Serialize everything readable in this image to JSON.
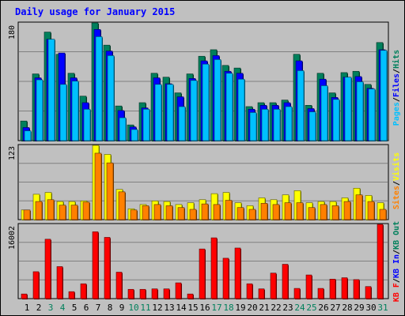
{
  "title": "Daily usage for January 2015",
  "colors": {
    "frame_bg": "#c0c0c0",
    "grid": "#808080",
    "title": "#0000ff",
    "hits": "#00805c",
    "files": "#0000ff",
    "pages": "#00c0ff",
    "visits": "#ffff00",
    "sites": "#ff8000",
    "kbytes": "#ff0000",
    "weekend_label": "#00805c",
    "weekday_label": "#000000"
  },
  "chart_data": [
    {
      "type": "bar",
      "panel": "top",
      "y_max_label": "180",
      "ymax": 180,
      "legend": [
        {
          "text": "Pages",
          "color": "#00c0ff"
        },
        {
          "text": "/",
          "color": "#000000"
        },
        {
          "text": "Files",
          "color": "#0000ff"
        },
        {
          "text": "/",
          "color": "#000000"
        },
        {
          "text": "Hits",
          "color": "#00805c"
        }
      ],
      "categories": [
        "1",
        "2",
        "3",
        "4",
        "5",
        "6",
        "7",
        "8",
        "9",
        "10",
        "11",
        "12",
        "13",
        "14",
        "15",
        "16",
        "17",
        "18",
        "19",
        "20",
        "21",
        "22",
        "23",
        "24",
        "25",
        "26",
        "27",
        "28",
        "29",
        "30",
        "31"
      ],
      "series": [
        {
          "name": "Hits",
          "color": "#00805c",
          "values": [
            30,
            102,
            166,
            132,
            103,
            68,
            180,
            146,
            53,
            24,
            58,
            103,
            97,
            73,
            102,
            129,
            139,
            115,
            111,
            52,
            58,
            58,
            62,
            132,
            54,
            103,
            73,
            104,
            106,
            86,
            150
          ]
        },
        {
          "name": "Files",
          "color": "#0000ff",
          "values": [
            20,
            96,
            155,
            134,
            96,
            58,
            170,
            137,
            46,
            21,
            50,
            96,
            87,
            67,
            95,
            122,
            130,
            106,
            103,
            48,
            54,
            54,
            58,
            122,
            49,
            94,
            66,
            97,
            98,
            80,
            139
          ]
        },
        {
          "name": "Pages",
          "color": "#00c0ff",
          "values": [
            15,
            93,
            155,
            86,
            91,
            48,
            159,
            130,
            35,
            17,
            48,
            86,
            86,
            52,
            92,
            117,
            124,
            103,
            94,
            43,
            48,
            48,
            52,
            107,
            44,
            84,
            63,
            97,
            90,
            79,
            138
          ]
        }
      ]
    },
    {
      "type": "bar",
      "panel": "middle",
      "y_max_label": "123",
      "ymax": 123,
      "legend": [
        {
          "text": "Sites",
          "color": "#ff8000"
        },
        {
          "text": "/",
          "color": "#000000"
        },
        {
          "text": "Visits",
          "color": "#ffff00"
        }
      ],
      "categories": [
        "1",
        "2",
        "3",
        "4",
        "5",
        "6",
        "7",
        "8",
        "9",
        "10",
        "11",
        "12",
        "13",
        "14",
        "15",
        "16",
        "17",
        "18",
        "19",
        "20",
        "21",
        "22",
        "23",
        "24",
        "25",
        "26",
        "27",
        "28",
        "29",
        "30",
        "31"
      ],
      "series": [
        {
          "name": "Visits",
          "color": "#ffff00",
          "values": [
            16,
            42,
            45,
            30,
            30,
            31,
            123,
            108,
            50,
            18,
            25,
            31,
            30,
            25,
            28,
            33,
            43,
            45,
            28,
            23,
            36,
            33,
            41,
            48,
            28,
            30,
            30,
            36,
            52,
            40,
            28
          ]
        },
        {
          "name": "Sites",
          "color": "#ff8000",
          "values": [
            16,
            30,
            33,
            24,
            24,
            29,
            110,
            94,
            46,
            16,
            23,
            25,
            23,
            20,
            17,
            26,
            25,
            32,
            20,
            17,
            27,
            25,
            28,
            28,
            20,
            25,
            23,
            30,
            41,
            30,
            17
          ]
        }
      ]
    },
    {
      "type": "bar",
      "panel": "bottom",
      "y_max_label": "16002",
      "ymax": 16002,
      "legend": [
        {
          "text": "KB F",
          "color": "#ff0000"
        },
        {
          "text": "/",
          "color": "#000000"
        },
        {
          "text": "KB In",
          "color": "#0000ff"
        },
        {
          "text": "/",
          "color": "#000000"
        },
        {
          "text": "KB Out",
          "color": "#00805c"
        }
      ],
      "categories": [
        "1",
        "2",
        "3",
        "4",
        "5",
        "6",
        "7",
        "8",
        "9",
        "10",
        "11",
        "12",
        "13",
        "14",
        "15",
        "16",
        "17",
        "18",
        "19",
        "20",
        "21",
        "22",
        "23",
        "24",
        "25",
        "26",
        "27",
        "28",
        "29",
        "30",
        "31"
      ],
      "series": [
        {
          "name": "KB F",
          "color": "#ff0000",
          "values": [
            1000,
            5800,
            12800,
            6900,
            1500,
            3200,
            14400,
            13200,
            5700,
            2000,
            2000,
            2100,
            2100,
            3400,
            1000,
            10700,
            13100,
            8700,
            10900,
            3200,
            2100,
            5500,
            7400,
            2200,
            5100,
            2200,
            4200,
            4500,
            4100,
            2600,
            16002
          ]
        }
      ]
    }
  ],
  "day_labels": [
    {
      "text": "1",
      "weekend": false
    },
    {
      "text": "2",
      "weekend": false
    },
    {
      "text": "3",
      "weekend": true
    },
    {
      "text": "4",
      "weekend": true
    },
    {
      "text": "5",
      "weekend": false
    },
    {
      "text": "6",
      "weekend": false
    },
    {
      "text": "7",
      "weekend": false
    },
    {
      "text": "8",
      "weekend": false
    },
    {
      "text": "9",
      "weekend": false
    },
    {
      "text": "10",
      "weekend": true
    },
    {
      "text": "11",
      "weekend": true
    },
    {
      "text": "12",
      "weekend": false
    },
    {
      "text": "13",
      "weekend": false
    },
    {
      "text": "14",
      "weekend": false
    },
    {
      "text": "15",
      "weekend": false
    },
    {
      "text": "16",
      "weekend": false
    },
    {
      "text": "17",
      "weekend": true
    },
    {
      "text": "18",
      "weekend": true
    },
    {
      "text": "19",
      "weekend": false
    },
    {
      "text": "20",
      "weekend": false
    },
    {
      "text": "21",
      "weekend": false
    },
    {
      "text": "22",
      "weekend": false
    },
    {
      "text": "23",
      "weekend": false
    },
    {
      "text": "24",
      "weekend": true
    },
    {
      "text": "25",
      "weekend": true
    },
    {
      "text": "26",
      "weekend": false
    },
    {
      "text": "27",
      "weekend": false
    },
    {
      "text": "28",
      "weekend": false
    },
    {
      "text": "29",
      "weekend": false
    },
    {
      "text": "30",
      "weekend": false
    },
    {
      "text": "31",
      "weekend": true
    }
  ]
}
